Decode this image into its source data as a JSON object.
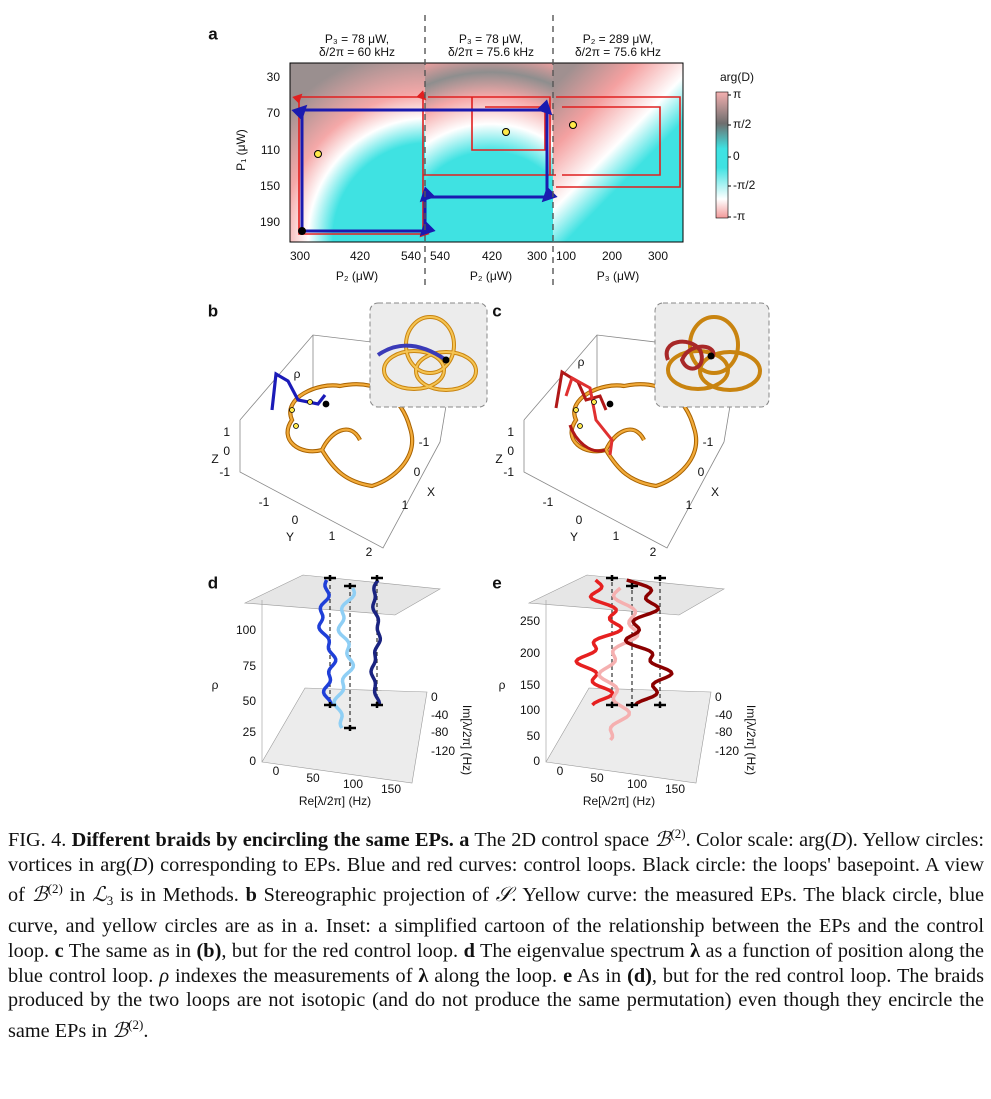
{
  "figure": {
    "a": {
      "label": "a",
      "titles": [
        [
          "P₃ = 78 μW,",
          "δ/2π = 60 kHz"
        ],
        [
          "P₃ = 78 μW,",
          "δ/2π = 75.6 kHz"
        ],
        [
          "P₂ = 289 μW,",
          "δ/2π = 75.6 kHz"
        ]
      ],
      "y_label": "P₁ (μW)",
      "y_ticks": [
        "30",
        "70",
        "110",
        "150",
        "190"
      ],
      "x_ticks": [
        [
          "300",
          "420",
          "540"
        ],
        [
          "540",
          "420",
          "300"
        ],
        [
          "100",
          "200",
          "300"
        ]
      ],
      "x_labels": [
        "P₂ (μW)",
        "P₂ (μW)",
        "P₃ (μW)"
      ],
      "colorbar_title": "arg(D)",
      "colorbar_ticks": [
        "π",
        "π/2",
        "0",
        "-π/2",
        "-π"
      ]
    },
    "b": {
      "label": "b",
      "rho": "ρ",
      "z": "Z",
      "z_ticks": [
        "1",
        "0",
        "-1"
      ],
      "x": "X",
      "x_ticks": [
        "-1",
        "0",
        "1"
      ],
      "y": "Y",
      "y_ticks": [
        "-1",
        "0",
        "1",
        "2"
      ]
    },
    "c": {
      "label": "c",
      "rho": "ρ",
      "z": "Z",
      "z_ticks": [
        "1",
        "0",
        "-1"
      ],
      "x": "X",
      "x_ticks": [
        "-1",
        "0",
        "1"
      ],
      "y": "Y",
      "y_ticks": [
        "-1",
        "0",
        "1",
        "2"
      ]
    },
    "d": {
      "label": "d",
      "rho": "ρ",
      "rho_ticks": [
        "100",
        "75",
        "50",
        "25",
        "0"
      ],
      "re_ticks": [
        "0",
        "50",
        "100",
        "150"
      ],
      "re_label": "Re[λ/2π] (Hz)",
      "im_ticks": [
        "0",
        "-40",
        "-80",
        "-120"
      ],
      "im_label": "Im[λ/2π] (Hz)"
    },
    "e": {
      "label": "e",
      "rho": "ρ",
      "rho_ticks": [
        "250",
        "200",
        "150",
        "100",
        "50",
        "0"
      ],
      "re_ticks": [
        "0",
        "50",
        "100",
        "150"
      ],
      "re_label": "Re[λ/2π] (Hz)",
      "im_ticks": [
        "0",
        "-40",
        "-80",
        "-120"
      ],
      "im_label": "Im[λ/2π] (Hz)"
    }
  },
  "caption": [
    "FIG. 4. ",
    "Different braids by encircling the same EPs.",
    " a",
    " The 2D control space ",
    "ℬ",
    "(2)",
    ". Color scale: arg(",
    "D",
    "). Yellow circles: vortices in arg(",
    "D",
    ") corresponding to EPs. Blue and red curves: control loops. Black circle: the loops' basepoint. A view of ",
    "ℬ",
    "(2)",
    " in ",
    "ℒ",
    "3",
    " is in Methods. ",
    "b",
    " Stereographic projection of ",
    "𝒮",
    ". Yellow curve: the measured EPs. The black circle, blue curve, and yellow circles are as in a. Inset: a simplified cartoon of the relationship between the EPs and the control loop. ",
    "c",
    " The same as in ",
    "(b)",
    ", but for the red control loop. ",
    "d",
    " The eigenvalue spectrum ",
    "λ",
    " as a function of position along the blue control loop. ",
    "ρ",
    " indexes the measurements of ",
    "λ",
    " along the loop. ",
    "e",
    " As in ",
    "(d)",
    ", but for the red control loop. The braids produced by the two loops are not isotopic (and do not produce the same permutation) even though they encircle the same EPs in ",
    "ℬ",
    "(2)",
    "."
  ]
}
